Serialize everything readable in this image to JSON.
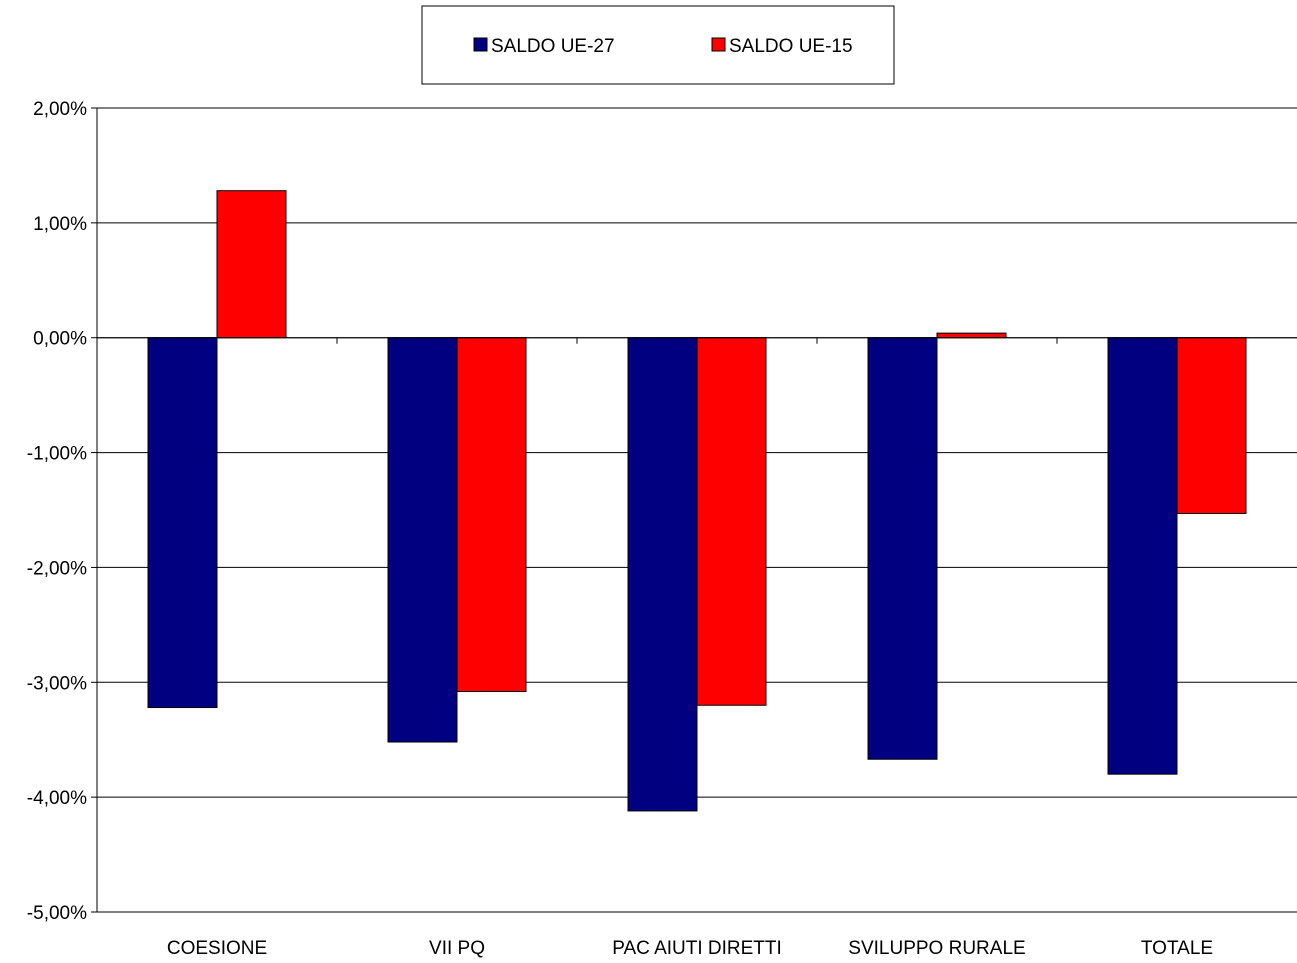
{
  "chart_data": {
    "type": "bar",
    "categories": [
      "COESIONE",
      "VII PQ",
      "PAC AIUTI DIRETTI",
      "SVILUPPO RURALE",
      "TOTALE"
    ],
    "series": [
      {
        "name": "SALDO UE-27",
        "color": "#000080",
        "values": [
          -3.22,
          -3.52,
          -4.12,
          -3.67,
          -3.8
        ]
      },
      {
        "name": "SALDO UE-15",
        "color": "#ff0000",
        "values": [
          1.28,
          -3.08,
          -3.2,
          0.04,
          -1.53
        ]
      }
    ],
    "ylim": [
      -5,
      2
    ],
    "yticks": [
      2,
      1,
      0,
      -1,
      -2,
      -3,
      -4,
      -5
    ],
    "ytick_labels": [
      "2,00%",
      "1,00%",
      "0,00%",
      "-1,00%",
      "-2,00%",
      "-3,00%",
      "-4,00%",
      "-5,00%"
    ],
    "grid": true,
    "legend_position": "top-center",
    "title": "",
    "xlabel": "",
    "ylabel": ""
  }
}
